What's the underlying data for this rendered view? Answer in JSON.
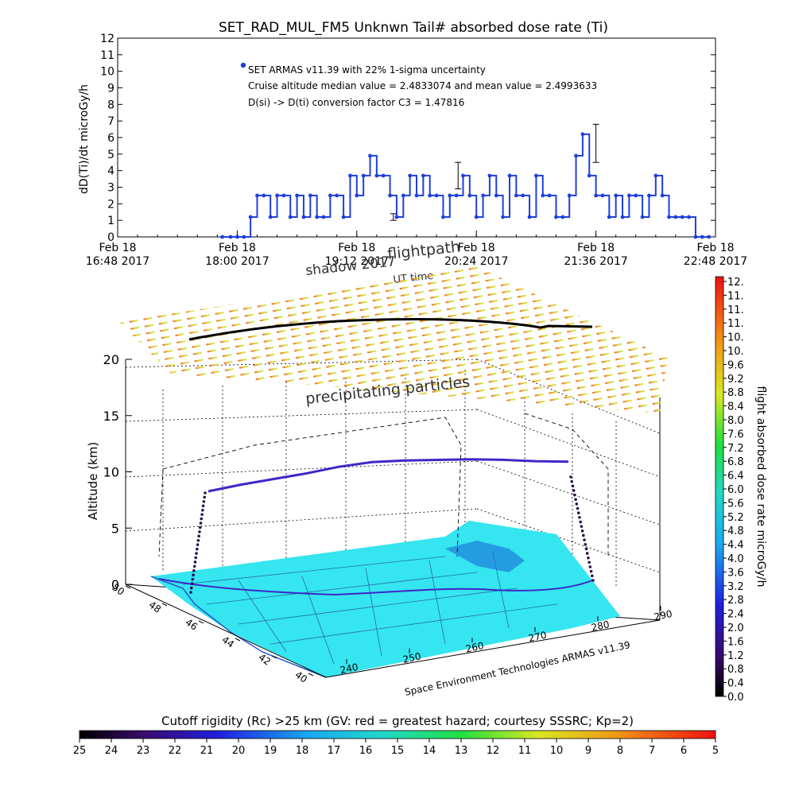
{
  "chart_data": [
    {
      "type": "line",
      "title": "SET_RAD_MUL_FM5 Unknwn Tail#  absorbed dose rate (Ti)",
      "ylabel": "dD(Ti)/dt microGy/h",
      "xlabel": "UT time",
      "ylim": [
        0,
        12
      ],
      "yticks": [
        "0",
        "1",
        "2",
        "3",
        "4",
        "5",
        "6",
        "7",
        "8",
        "9",
        "10",
        "11",
        "12"
      ],
      "xticks": [
        {
          "line1": "Feb 18",
          "line2": "16:48 2017"
        },
        {
          "line1": "Feb 18",
          "line2": "18:00 2017"
        },
        {
          "line1": "Feb 18",
          "line2": "19:12 2017"
        },
        {
          "line1": "Feb 18",
          "line2": "20:24 2017"
        },
        {
          "line1": "Feb 18",
          "line2": "21:36 2017"
        },
        {
          "line1": "Feb 18",
          "line2": "22:48 2017"
        }
      ],
      "x_minutes_range": [
        0,
        360
      ],
      "legend": {
        "line1": "SET ARMAS v11.39 with 22% 1-sigma uncertainty",
        "line2": "Cruise altitude median value = 2.4833074 and mean value = 2.4993633",
        "line3": "D(si) -> D(ti) conversion factor C3 = 1.47816"
      },
      "series": [
        {
          "color": "#1f3fdc",
          "x_minutes": [
            63,
            68,
            72,
            76,
            80,
            84,
            88,
            92,
            96,
            100,
            104,
            108,
            112,
            116,
            120,
            124,
            128,
            132,
            136,
            140,
            144,
            148,
            152,
            156,
            160,
            164,
            168,
            172,
            176,
            180,
            184,
            188,
            192,
            196,
            200,
            204,
            208,
            212,
            216,
            220,
            224,
            228,
            232,
            236,
            240,
            244,
            248,
            252,
            256,
            260,
            264,
            268,
            272,
            276,
            280,
            284,
            288,
            292,
            296,
            300,
            304,
            308,
            312,
            316,
            320,
            324,
            328,
            332,
            336,
            340,
            344,
            348,
            352,
            356
          ],
          "values": [
            0,
            0,
            0,
            0,
            1.2,
            2.5,
            2.5,
            1.2,
            2.5,
            2.5,
            1.2,
            2.5,
            1.2,
            2.5,
            1.2,
            1.2,
            2.5,
            2.5,
            1.2,
            3.7,
            2.5,
            3.7,
            4.9,
            3.7,
            3.7,
            2.5,
            1.2,
            2.5,
            3.7,
            2.5,
            3.7,
            2.5,
            2.5,
            1.2,
            2.5,
            2.5,
            3.7,
            2.5,
            1.2,
            2.5,
            3.7,
            2.5,
            1.2,
            3.7,
            2.5,
            2.5,
            1.2,
            3.7,
            2.5,
            2.5,
            1.2,
            1.2,
            2.5,
            4.9,
            6.2,
            3.7,
            2.5,
            2.5,
            1.2,
            2.5,
            1.2,
            2.5,
            2.5,
            1.2,
            2.5,
            3.7,
            2.5,
            1.2,
            1.2,
            1.2,
            1.2,
            0,
            0,
            0
          ]
        }
      ],
      "error_bars": [
        {
          "x_minutes": 166,
          "value": 1.2,
          "low": 1.0,
          "high": 1.4
        },
        {
          "x_minutes": 205,
          "value": 3.7,
          "low": 2.9,
          "high": 4.5
        },
        {
          "x_minutes": 288,
          "value": 6.2,
          "low": 4.5,
          "high": 6.8
        }
      ]
    },
    {
      "type": "scatter",
      "title": "",
      "zlabel": "Altitude (km)",
      "zticks": [
        "0",
        "5",
        "10",
        "15",
        "20"
      ],
      "lat_ticks": [
        "50",
        "48",
        "46",
        "44",
        "42",
        "40"
      ],
      "lon_ticks": [
        "240",
        "250",
        "260",
        "270",
        "280",
        "290"
      ],
      "annotations": {
        "shadow": "shadow 2017",
        "flightpath": "flightpath",
        "xtitle": "UT time",
        "precip": "precipitating particles",
        "credit": "Space Environment Technologies ARMAS v11.39"
      },
      "colorbar_right": {
        "label": "flight absorbed dose rate microGy/h",
        "ticks": [
          "12.",
          "11.",
          "11.",
          "11.",
          "10.",
          "10.",
          "9.6",
          "9.2",
          "8.8",
          "8.4",
          "8.0",
          "7.6",
          "7.2",
          "6.8",
          "6.4",
          "6.0",
          "5.6",
          "5.2",
          "4.8",
          "4.4",
          "4.0",
          "3.6",
          "3.2",
          "2.8",
          "2.4",
          "2.0",
          "1.6",
          "1.2",
          "0.8",
          "0.4",
          "0.0"
        ]
      },
      "colorbar_bottom": {
        "label": "Cutoff rigidity (Rc) >25 km (GV: red = greatest hazard; courtesy SSSRC; Kp=2)",
        "ticks": [
          "25",
          "24",
          "23",
          "22",
          "21",
          "20",
          "19",
          "18",
          "17",
          "16",
          "15",
          "14",
          "13",
          "12",
          "11",
          "10",
          "9",
          "8",
          "7",
          "6",
          "5"
        ]
      },
      "flight_altitude_km": [
        8.5,
        9.0,
        9.4,
        9.8,
        10.3,
        10.6,
        10.6,
        10.5,
        10.4,
        10.2,
        9.9,
        9.7
      ],
      "colors": {
        "ground": "#35e5ef",
        "track": "#3c28c8",
        "axis": "#000000"
      }
    }
  ]
}
